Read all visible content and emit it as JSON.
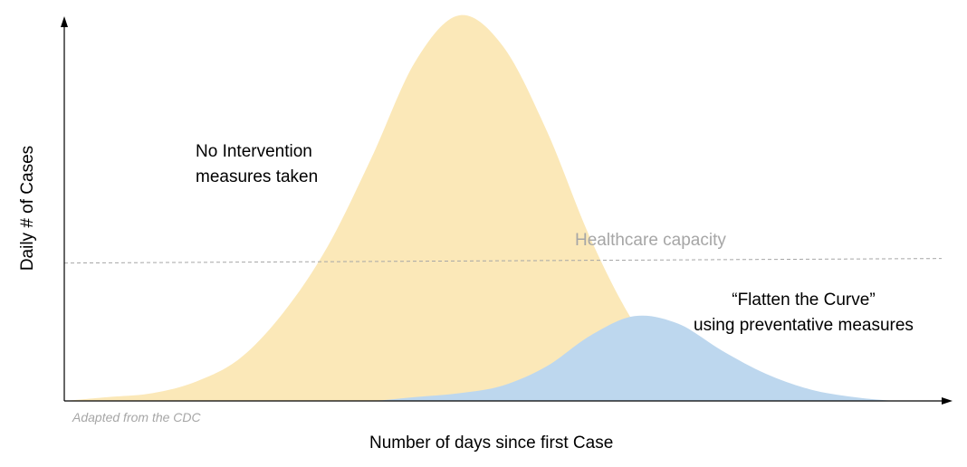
{
  "chart_data": {
    "type": "area",
    "title": "",
    "xlabel": "Number of days since first Case",
    "ylabel": "Daily # of Cases",
    "x_ticks": false,
    "y_ticks": false,
    "grid": false,
    "legend": "none",
    "series": [
      {
        "name": "No Intervention measures taken",
        "color": "#fbe8b8",
        "x": [
          0,
          5,
          10,
          15,
          20,
          25,
          30,
          35,
          40,
          45,
          50,
          55,
          60,
          65,
          70,
          75,
          80,
          85,
          90,
          95,
          100
        ],
        "values": [
          0,
          1,
          2,
          5,
          11,
          23,
          40,
          63,
          88,
          100,
          92,
          70,
          42,
          20,
          6,
          1,
          0,
          0,
          0,
          0,
          0
        ]
      },
      {
        "name": "“Flatten the Curve” using preventative measures",
        "color": "#bdd7ee",
        "x": [
          0,
          5,
          10,
          15,
          20,
          25,
          30,
          35,
          40,
          45,
          50,
          55,
          60,
          65,
          70,
          75,
          80,
          85,
          90,
          95,
          100
        ],
        "values": [
          0,
          0,
          0,
          0,
          0,
          0,
          0,
          0,
          1,
          2,
          4,
          9,
          17,
          22,
          20,
          13,
          7,
          3,
          1,
          0,
          0
        ]
      }
    ],
    "reference_line": {
      "label": "Healthcare capacity",
      "value": 36,
      "style": "dashed",
      "color": "#a6a6a6"
    },
    "ylim": [
      0,
      100
    ],
    "xlim": [
      0,
      100
    ]
  },
  "annotations": {
    "no_intervention_line1": "No Intervention",
    "no_intervention_line2": "measures taken",
    "flatten_line1": "“Flatten the Curve”",
    "flatten_line2": "using preventative measures",
    "capacity_label": "Healthcare capacity",
    "source": "Adapted from the CDC"
  }
}
